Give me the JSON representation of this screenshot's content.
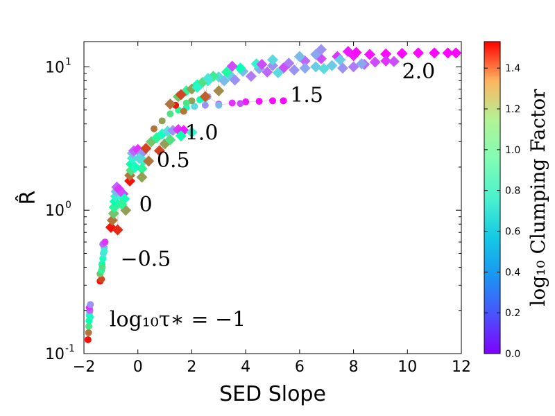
{
  "chart_data": {
    "type": "scatter",
    "title": "",
    "xlabel": "SED Slope",
    "ylabel": "R̂",
    "xlim": [
      -2,
      12
    ],
    "ylim": [
      0.1,
      15
    ],
    "yscale": "log",
    "x_ticks": [
      -2,
      0,
      2,
      4,
      6,
      8,
      10,
      12
    ],
    "x_tick_labels": [
      "−2",
      "0",
      "2",
      "4",
      "6",
      "8",
      "10",
      "12"
    ],
    "y_ticks": [
      {
        "value": 0.1,
        "base": "10",
        "exp": "-1"
      },
      {
        "value": 1,
        "base": "10",
        "exp": "0"
      },
      {
        "value": 10,
        "base": "10",
        "exp": "1"
      }
    ],
    "annotations": [
      {
        "text": "log₁₀τ∗ = −1",
        "x": -1.05,
        "y": 0.155
      },
      {
        "text": "−0.5",
        "x": -0.65,
        "y": 0.41
      },
      {
        "text": "0",
        "x": 0.05,
        "y": 0.98
      },
      {
        "text": "0.5",
        "x": 0.7,
        "y": 2.0
      },
      {
        "text": "1.0",
        "x": 1.75,
        "y": 3.1
      },
      {
        "text": "1.5",
        "x": 5.65,
        "y": 5.7
      },
      {
        "text": "2.0",
        "x": 9.8,
        "y": 8.3
      }
    ],
    "colorbar": {
      "label": "log₁₀ Clumping Factor",
      "range": [
        0.0,
        1.53
      ],
      "ticks": [
        0.0,
        0.2,
        0.4,
        0.6,
        0.8,
        1.0,
        1.2,
        1.4
      ],
      "tick_labels": [
        "0.0",
        "0.2",
        "0.4",
        "0.6",
        "0.8",
        "1.0",
        "1.2",
        "1.4"
      ]
    },
    "series": [
      {
        "name": "log10 tau = -1",
        "marker": "circle",
        "points": [
          [
            -1.85,
            0.125,
            1.5
          ],
          [
            -1.83,
            0.14,
            1.3
          ],
          [
            -1.82,
            0.155,
            1.0
          ],
          [
            -1.81,
            0.17,
            0.8
          ],
          [
            -1.8,
            0.185,
            0.6
          ],
          [
            -1.79,
            0.195,
            0.4
          ],
          [
            -1.78,
            0.2,
            0.2
          ],
          [
            -1.8,
            0.21,
            0.1
          ],
          [
            -1.77,
            0.18,
            0.7
          ],
          [
            -1.76,
            0.22,
            0.3
          ]
        ]
      },
      {
        "name": "log10 tau = -0.5",
        "marker": "circle",
        "points": [
          [
            -1.4,
            0.32,
            1.5
          ],
          [
            -1.35,
            0.33,
            1.4
          ],
          [
            -1.4,
            0.36,
            1.1
          ],
          [
            -1.35,
            0.38,
            0.9
          ],
          [
            -1.33,
            0.42,
            0.8
          ],
          [
            -1.3,
            0.46,
            0.7
          ],
          [
            -1.28,
            0.5,
            0.5
          ],
          [
            -1.25,
            0.55,
            0.4
          ],
          [
            -1.3,
            0.58,
            0.2
          ],
          [
            -1.22,
            0.6,
            0.1
          ],
          [
            -1.25,
            0.52,
            0.6
          ],
          [
            -1.32,
            0.4,
            1.0
          ]
        ]
      },
      {
        "name": "log10 tau = 0",
        "marker": "diamond",
        "points": [
          [
            -1.0,
            0.76,
            1.5
          ],
          [
            -0.75,
            0.73,
            1.45
          ],
          [
            -0.95,
            0.85,
            1.3
          ],
          [
            -0.9,
            0.95,
            1.1
          ],
          [
            -0.88,
            1.05,
            0.9
          ],
          [
            -0.85,
            1.15,
            0.8
          ],
          [
            -0.82,
            1.25,
            0.6
          ],
          [
            -0.8,
            1.35,
            0.4
          ],
          [
            -0.78,
            1.45,
            0.2
          ],
          [
            -0.7,
            1.4,
            0.1
          ],
          [
            -0.55,
            1.3,
            0.15
          ],
          [
            -0.5,
            1.2,
            0.7
          ],
          [
            -0.45,
            1.0,
            1.2
          ],
          [
            -0.6,
            1.1,
            0.9
          ]
        ]
      },
      {
        "name": "log10 tau = 0.5",
        "marker": "diamond",
        "points": [
          [
            -0.3,
            1.6,
            1.5
          ],
          [
            -0.3,
            1.75,
            1.3
          ],
          [
            -0.25,
            1.9,
            1.0
          ],
          [
            -0.25,
            2.1,
            0.8
          ],
          [
            -0.2,
            2.3,
            0.6
          ],
          [
            -0.2,
            2.5,
            0.4
          ],
          [
            -0.15,
            2.6,
            0.2
          ],
          [
            0.0,
            2.65,
            0.1
          ],
          [
            0.15,
            2.5,
            0.3
          ],
          [
            0.2,
            2.2,
            0.6
          ],
          [
            0.15,
            1.95,
            0.9
          ],
          [
            0.15,
            1.7,
            1.2
          ],
          [
            -0.1,
            2.0,
            0.7
          ],
          [
            0.05,
            2.3,
            0.5
          ]
        ]
      },
      {
        "name": "log10 tau = 1.0",
        "marker": "diamond",
        "points": [
          [
            0.3,
            2.7,
            1.4
          ],
          [
            0.5,
            3.0,
            1.1
          ],
          [
            0.7,
            3.2,
            0.9
          ],
          [
            0.9,
            3.4,
            0.7
          ],
          [
            1.1,
            3.55,
            0.5
          ],
          [
            1.3,
            3.6,
            0.3
          ],
          [
            1.5,
            3.65,
            0.1
          ],
          [
            1.7,
            3.6,
            0.05
          ],
          [
            0.8,
            2.6,
            1.4
          ],
          [
            1.0,
            2.9,
            1.2
          ],
          [
            1.2,
            3.1,
            1.0
          ],
          [
            1.6,
            3.3,
            0.8
          ],
          [
            2.0,
            3.5,
            0.6
          ],
          [
            0.4,
            2.2,
            1.3
          ]
        ]
      },
      {
        "name": "log10 tau = 1.5",
        "marker": "circle",
        "points": [
          [
            0.6,
            3.7,
            1.3
          ],
          [
            0.9,
            4.2,
            1.2
          ],
          [
            1.2,
            4.7,
            1.0
          ],
          [
            1.5,
            5.0,
            0.9
          ],
          [
            1.8,
            5.2,
            0.7
          ],
          [
            2.1,
            5.3,
            0.5
          ],
          [
            2.5,
            5.4,
            0.3
          ],
          [
            3.0,
            5.5,
            0.2
          ],
          [
            3.5,
            5.6,
            0.1
          ],
          [
            4.0,
            5.7,
            0.05
          ],
          [
            4.5,
            5.75,
            0.03
          ],
          [
            5.0,
            5.8,
            0.02
          ],
          [
            5.4,
            5.8,
            0.01
          ],
          [
            1.4,
            5.4,
            1.5
          ],
          [
            2.0,
            5.8,
            1.2
          ],
          [
            2.5,
            6.0,
            0.6
          ],
          [
            3.0,
            5.4,
            0.4
          ],
          [
            3.8,
            5.55,
            0.15
          ],
          [
            1.8,
            5.6,
            1.0
          ],
          [
            2.3,
            5.9,
            0.8
          ],
          [
            1.7,
            4.9,
            1.3
          ],
          [
            2.6,
            6.2,
            0.35
          ]
        ]
      },
      {
        "name": "log10 tau = 2.0",
        "marker": "diamond",
        "points": [
          [
            1.2,
            5.5,
            1.3
          ],
          [
            1.5,
            6.2,
            1.1
          ],
          [
            1.8,
            6.8,
            0.9
          ],
          [
            2.2,
            7.5,
            0.7
          ],
          [
            2.6,
            8.0,
            0.6
          ],
          [
            3.0,
            8.5,
            0.5
          ],
          [
            3.4,
            8.8,
            0.45
          ],
          [
            3.9,
            9.3,
            0.4
          ],
          [
            4.5,
            9.7,
            0.35
          ],
          [
            5.0,
            10.2,
            0.3
          ],
          [
            5.6,
            10.6,
            0.25
          ],
          [
            6.2,
            11.0,
            0.2
          ],
          [
            6.8,
            11.4,
            0.15
          ],
          [
            7.4,
            11.8,
            0.1
          ],
          [
            8.0,
            12.0,
            0.05
          ],
          [
            8.6,
            12.2,
            0.03
          ],
          [
            9.2,
            12.3,
            0.02
          ],
          [
            9.8,
            12.4,
            0.01
          ],
          [
            10.4,
            12.5,
            0.01
          ],
          [
            11.0,
            12.5,
            0.01
          ],
          [
            11.5,
            12.5,
            0.01
          ],
          [
            11.8,
            12.5,
            0.01
          ],
          [
            1.6,
            6.4,
            1.4
          ],
          [
            2.0,
            7.0,
            1.2
          ],
          [
            2.4,
            7.8,
            1.0
          ],
          [
            2.8,
            8.6,
            0.95
          ],
          [
            3.3,
            9.2,
            0.85
          ],
          [
            3.8,
            9.8,
            0.75
          ],
          [
            4.4,
            10.5,
            0.6
          ],
          [
            5.0,
            11.2,
            0.5
          ],
          [
            2.5,
            6.2,
            1.35
          ],
          [
            3.0,
            6.8,
            1.25
          ],
          [
            2.2,
            7.2,
            0.65
          ],
          [
            2.6,
            8.3,
            0.55
          ],
          [
            3.2,
            8.0,
            0.4
          ],
          [
            3.6,
            8.1,
            0.3
          ],
          [
            4.2,
            8.6,
            0.25
          ],
          [
            4.8,
            9.2,
            0.2
          ],
          [
            5.4,
            9.8,
            0.15
          ],
          [
            5.8,
            9.5,
            0.3
          ],
          [
            6.2,
            9.8,
            0.35
          ],
          [
            6.6,
            10.0,
            0.45
          ],
          [
            6.9,
            9.7,
            0.5
          ],
          [
            7.2,
            10.2,
            0.45
          ],
          [
            7.6,
            9.8,
            0.3
          ],
          [
            8.0,
            10.0,
            0.25
          ],
          [
            8.4,
            10.4,
            0.2
          ],
          [
            8.8,
            10.8,
            0.15
          ],
          [
            9.2,
            11.0,
            0.1
          ],
          [
            6.0,
            11.8,
            0.4
          ],
          [
            6.6,
            12.2,
            0.35
          ],
          [
            6.8,
            13.2,
            0.3
          ],
          [
            7.5,
            11.2,
            0.45
          ],
          [
            8.3,
            10.5,
            0.35
          ],
          [
            9.5,
            10.9,
            0.15
          ],
          [
            7.8,
            12.8,
            0.05
          ],
          [
            8.1,
            12.6,
            0.02
          ],
          [
            5.2,
            9.1,
            0.5
          ],
          [
            4.6,
            10.4,
            0.15
          ],
          [
            3.5,
            10.1,
            0.15
          ]
        ]
      }
    ]
  }
}
